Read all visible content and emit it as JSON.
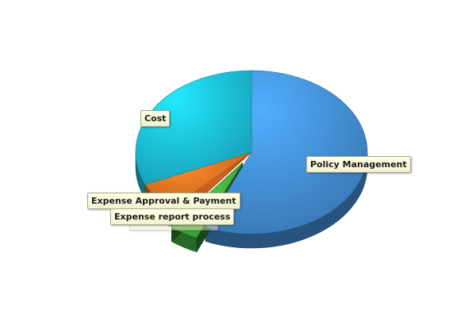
{
  "chart_data": {
    "type": "pie",
    "title": "",
    "three_d": true,
    "legend": "none",
    "slices": [
      {
        "name": "Policy Management",
        "value": 56.5,
        "color": "#3f86c8"
      },
      {
        "name": "Expense report process",
        "value": 4.0,
        "color": "#3fa83a",
        "exploded": true
      },
      {
        "name": "Booking Process",
        "value": 2.0,
        "color": "#b3541b"
      },
      {
        "name": "Expense Approval & Payment",
        "value": 6.0,
        "color": "#d46a1f"
      },
      {
        "name": "Cost",
        "value": 31.5,
        "color": "#1ab3cf"
      }
    ]
  }
}
